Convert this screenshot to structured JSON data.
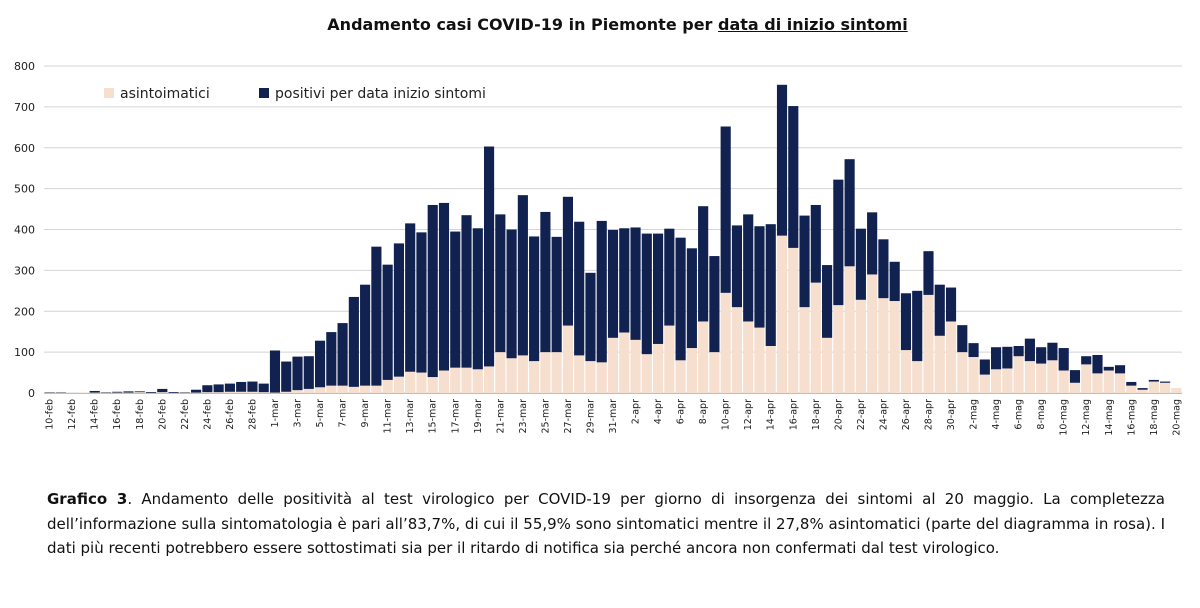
{
  "chart_data": {
    "type": "bar",
    "stacked": true,
    "title_parts": [
      "Andamento casi COVID-19 in Piemonte per ",
      "data di inizio sintomi"
    ],
    "ylim": [
      0,
      800
    ],
    "yticks": [
      0,
      100,
      200,
      300,
      400,
      500,
      600,
      700,
      800
    ],
    "xlabel": "",
    "ylabel": "",
    "legend_position": "top-left",
    "categories": [
      "10-feb",
      "11-feb",
      "12-feb",
      "13-feb",
      "14-feb",
      "15-feb",
      "16-feb",
      "17-feb",
      "18-feb",
      "19-feb",
      "20-feb",
      "21-feb",
      "22-feb",
      "23-feb",
      "24-feb",
      "25-feb",
      "26-feb",
      "27-feb",
      "28-feb",
      "29-feb",
      "1-mar",
      "2-mar",
      "3-mar",
      "4-mar",
      "5-mar",
      "6-mar",
      "7-mar",
      "8-mar",
      "9-mar",
      "10-mar",
      "11-mar",
      "12-mar",
      "13-mar",
      "14-mar",
      "15-mar",
      "16-mar",
      "17-mar",
      "18-mar",
      "19-mar",
      "20-mar",
      "21-mar",
      "22-mar",
      "23-mar",
      "24-mar",
      "25-mar",
      "26-mar",
      "27-mar",
      "28-mar",
      "29-mar",
      "30-mar",
      "31-mar",
      "1-apr",
      "2-apr",
      "3-apr",
      "4-apr",
      "5-apr",
      "6-apr",
      "7-apr",
      "8-apr",
      "9-apr",
      "10-apr",
      "11-apr",
      "12-apr",
      "13-apr",
      "14-apr",
      "15-apr",
      "16-apr",
      "17-apr",
      "18-apr",
      "19-apr",
      "20-apr",
      "21-apr",
      "22-apr",
      "23-apr",
      "24-apr",
      "25-apr",
      "26-apr",
      "27-apr",
      "28-apr",
      "29-apr",
      "30-apr",
      "1-mag",
      "2-mag",
      "3-mag",
      "4-mag",
      "5-mag",
      "6-mag",
      "7-mag",
      "8-mag",
      "9-mag",
      "10-mag",
      "11-mag",
      "12-mag",
      "13-mag",
      "14-mag",
      "15-mag",
      "16-mag",
      "17-mag",
      "18-mag",
      "19-mag",
      "20-mag"
    ],
    "tick_labels": [
      "10-feb",
      "12-feb",
      "14-feb",
      "16-feb",
      "18-feb",
      "20-feb",
      "22-feb",
      "24-feb",
      "26-feb",
      "28-feb",
      "1-mar",
      "3-mar",
      "5-mar",
      "7-mar",
      "9-mar",
      "11-mar",
      "13-mar",
      "15-mar",
      "17-mar",
      "19-mar",
      "21-mar",
      "23-mar",
      "25-mar",
      "27-mar",
      "29-mar",
      "31-mar",
      "2-apr",
      "4-apr",
      "6-apr",
      "8-apr",
      "10-apr",
      "12-apr",
      "14-apr",
      "16-apr",
      "18-apr",
      "20-apr",
      "22-apr",
      "24-apr",
      "26-apr",
      "28-apr",
      "30-apr",
      "2-mag",
      "4-mag",
      "6-mag",
      "8-mag",
      "10-mag",
      "12-mag",
      "14-mag",
      "16-mag",
      "18-mag",
      "20-mag"
    ],
    "series": [
      {
        "name": "asintoimatici",
        "color": "#f6dfcf",
        "values": [
          1,
          0,
          0,
          1,
          1,
          1,
          1,
          1,
          2,
          0,
          2,
          0,
          1,
          1,
          2,
          2,
          3,
          3,
          3,
          2,
          1,
          3,
          7,
          10,
          14,
          18,
          18,
          15,
          18,
          18,
          32,
          40,
          52,
          50,
          39,
          55,
          62,
          62,
          58,
          65,
          100,
          85,
          92,
          78,
          100,
          100,
          165,
          92,
          78,
          75,
          135,
          148,
          130,
          95,
          120,
          165,
          80,
          110,
          175,
          100,
          245,
          210,
          175,
          160,
          115,
          385,
          355,
          210,
          270,
          135,
          215,
          310,
          228,
          290,
          232,
          225,
          105,
          78,
          240,
          140,
          175,
          100,
          88,
          45,
          58,
          60,
          90,
          78,
          72,
          80,
          55,
          25,
          70,
          48,
          55,
          48,
          18,
          8,
          28,
          25,
          12
        ]
      },
      {
        "name": "positivi per data inizio sintomi",
        "color": "#112250",
        "values": [
          1,
          1,
          0,
          0,
          4,
          1,
          2,
          3,
          2,
          2,
          8,
          2,
          1,
          7,
          17,
          19,
          20,
          24,
          25,
          21,
          103,
          74,
          82,
          80,
          114,
          131,
          153,
          220,
          247,
          340,
          282,
          326,
          363,
          343,
          421,
          410,
          333,
          373,
          345,
          538,
          337,
          315,
          392,
          305,
          343,
          282,
          315,
          327,
          216,
          346,
          264,
          255,
          275,
          295,
          270,
          237,
          300,
          244,
          282,
          235,
          407,
          200,
          262,
          248,
          298,
          369,
          347,
          224,
          190,
          178,
          307,
          262,
          174,
          152,
          144,
          96,
          139,
          172,
          107,
          125,
          83,
          66,
          34,
          37,
          54,
          53,
          25,
          55,
          40,
          43,
          55,
          31,
          20,
          45,
          9,
          20,
          9,
          4,
          4,
          3,
          0
        ]
      }
    ]
  },
  "caption": {
    "label": "Grafico 3",
    "text": ". Andamento delle positività al test virologico per COVID-19 per giorno di insorgenza dei sintomi al 20 maggio. La completezza dell’informazione sulla sintomatologia è pari all’83,7%, di cui il 55,9% sono sintomatici mentre il 27,8% asintomatici (parte del diagramma in rosa). I dati più recenti potrebbero essere sottostimati sia per il ritardo di notifica sia perché ancora non confermati dal test virologico."
  }
}
